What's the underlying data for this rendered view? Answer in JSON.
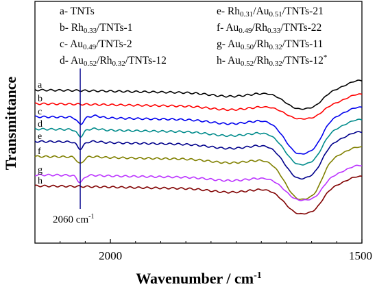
{
  "chart_data": {
    "type": "line",
    "title": "",
    "xlabel": "Wavenumber / cm",
    "xlabel_sup": "-1",
    "ylabel": "Transmittance",
    "xlim": [
      2150,
      1500
    ],
    "x_reversed": true,
    "x_ticks": [
      2000,
      1500
    ],
    "grid": false,
    "legend_placement": "top",
    "legend": [
      {
        "letter": "a-",
        "parts": [
          [
            "TNTs",
            ""
          ]
        ]
      },
      {
        "letter": "b-",
        "parts": [
          [
            "Rh",
            ""
          ],
          [
            "0.33",
            "sub"
          ],
          [
            "/TNTs-1",
            ""
          ]
        ]
      },
      {
        "letter": "c-",
        "parts": [
          [
            "Au",
            ""
          ],
          [
            "0.49",
            "sub"
          ],
          [
            "/TNTs-2",
            ""
          ]
        ]
      },
      {
        "letter": "d-",
        "parts": [
          [
            "Au",
            ""
          ],
          [
            "0.52",
            "sub"
          ],
          [
            "/Rh",
            ""
          ],
          [
            "0.32",
            "sub"
          ],
          [
            "/TNTs-12",
            ""
          ]
        ]
      },
      {
        "letter": "e-",
        "parts": [
          [
            "Rh",
            ""
          ],
          [
            "0.31",
            "sub"
          ],
          [
            "/Au",
            ""
          ],
          [
            "0.51",
            "sub"
          ],
          [
            "/TNTs-21",
            ""
          ]
        ]
      },
      {
        "letter": "f-",
        "parts": [
          [
            "Au",
            ""
          ],
          [
            "0.49",
            "sub"
          ],
          [
            "/Rh",
            ""
          ],
          [
            "0.33",
            "sub"
          ],
          [
            "/TNTs-22",
            ""
          ]
        ]
      },
      {
        "letter": "g-",
        "parts": [
          [
            "Au",
            ""
          ],
          [
            "0.50",
            "sub"
          ],
          [
            "/Rh",
            ""
          ],
          [
            "0.32",
            "sub"
          ],
          [
            "/TNTs-11",
            ""
          ]
        ]
      },
      {
        "letter": "h-",
        "parts": [
          [
            "Au",
            ""
          ],
          [
            "0.52",
            "sub"
          ],
          [
            "/Rh",
            ""
          ],
          [
            "0.32",
            "sub"
          ],
          [
            "/TNTs-12",
            ""
          ],
          [
            "*",
            "sup"
          ]
        ]
      }
    ],
    "annotation": {
      "text": "2060 cm",
      "sup": "-1",
      "x": 2060
    },
    "series": [
      {
        "letter": "a",
        "color": "#000000",
        "offset": 0,
        "scale": 1.0,
        "has2060": false,
        "band": 0.3,
        "hump": 0.0
      },
      {
        "letter": "b",
        "color": "#ff0000",
        "offset": 20,
        "scale": 0.95,
        "has2060": false,
        "band": 0.25,
        "hump": 0.0
      },
      {
        "letter": "c",
        "color": "#0000ee",
        "offset": 39,
        "scale": 1.1,
        "has2060": true,
        "band": 0.55,
        "hump": 0.3
      },
      {
        "letter": "d",
        "color": "#008b8b",
        "offset": 57,
        "scale": 1.05,
        "has2060": true,
        "band": 0.55,
        "hump": 0.2
      },
      {
        "letter": "e",
        "color": "#00008b",
        "offset": 75,
        "scale": 1.1,
        "has2060": true,
        "band": 0.55,
        "hump": 0.15
      },
      {
        "letter": "f",
        "color": "#808000",
        "offset": 97,
        "scale": 1.0,
        "has2060": true,
        "band": 0.7,
        "hump": 0.1
      },
      {
        "letter": "g",
        "color": "#bb33ff",
        "offset": 124,
        "scale": 0.9,
        "has2060": true,
        "band": 0.45,
        "hump": 0.05
      },
      {
        "letter": "h",
        "color": "#800000",
        "offset": 140,
        "scale": 1.0,
        "has2060": false,
        "band": 0.45,
        "hump": 0.05
      }
    ]
  }
}
